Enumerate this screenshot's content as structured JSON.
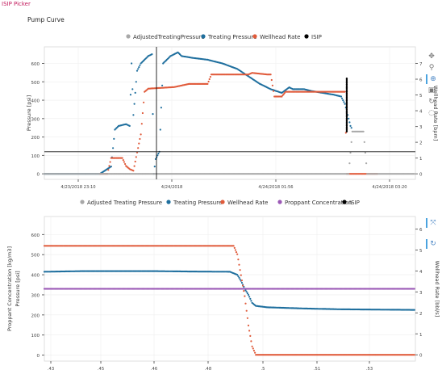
{
  "app": {
    "title": "ISIP Picker"
  },
  "page": {
    "title": "Pump Curve"
  },
  "colors": {
    "adjusted": "#a8a8a8",
    "treating": "#1f6f9e",
    "wellhead": "#e05a3a",
    "proppant": "#9b59b6",
    "isip": "#000000",
    "accent": "#4aa3df"
  },
  "chart_data": [
    {
      "type": "line",
      "legend": [
        {
          "name": "AdjustedTreatingPressure",
          "color": "#a8a8a8"
        },
        {
          "name": "Treating Pressure",
          "color": "#1f6f9e"
        },
        {
          "name": "Wellhead Rate",
          "color": "#e05a3a"
        },
        {
          "name": "ISIP",
          "color": "#000000"
        }
      ],
      "legend_position": "top",
      "ylabel": "Pressure [psi]",
      "ylabel2": "Wellhead Rate [bpm]",
      "y_ticks": [
        "0",
        "100",
        "200",
        "300",
        "400",
        "500",
        "600"
      ],
      "y2_ticks": [
        "0",
        "1",
        "2",
        "3",
        "4",
        "5",
        "6",
        "7"
      ],
      "x_ticks": [
        "4/23/2018 23:10",
        "4/24/2018",
        "4/24/2018 01:56",
        "4/24/2018 03:20"
      ],
      "ylim": [
        -30,
        690
      ],
      "y2lim": [
        -0.35,
        8.05
      ],
      "crosshair": {
        "x_label": "4/24/2018",
        "y": 120
      },
      "series": [
        {
          "name": "Treating Pressure",
          "color": "#1f6f9e",
          "values": [
            [
              0,
              0
            ],
            [
              15,
              0
            ],
            [
              18,
              40
            ],
            [
              19,
              240
            ],
            [
              20,
              260
            ],
            [
              22,
              270
            ],
            [
              23,
              260
            ],
            [
              23.5,
              600
            ],
            [
              24,
              320
            ],
            [
              25,
              560
            ],
            [
              26,
              600
            ],
            [
              27,
              620
            ],
            [
              28,
              640
            ],
            [
              29,
              650
            ],
            [
              29.5,
              0
            ],
            [
              30,
              80
            ],
            [
              31,
              120
            ],
            [
              32,
              600
            ],
            [
              33,
              620
            ],
            [
              34,
              640
            ],
            [
              35,
              650
            ],
            [
              36,
              660
            ],
            [
              37,
              640
            ],
            [
              40,
              630
            ],
            [
              44,
              620
            ],
            [
              48,
              600
            ],
            [
              52,
              570
            ],
            [
              55,
              530
            ],
            [
              58,
              490
            ],
            [
              61,
              460
            ],
            [
              64,
              440
            ],
            [
              66,
              470
            ],
            [
              67,
              460
            ],
            [
              70,
              460
            ],
            [
              72,
              450
            ],
            [
              75,
              440
            ],
            [
              78,
              430
            ],
            [
              80,
              420
            ],
            [
              81,
              380
            ],
            [
              82,
              300
            ],
            [
              82.5,
              260
            ],
            [
              83,
              240
            ]
          ]
        },
        {
          "name": "Wellhead Rate",
          "color": "#e05a3a",
          "values": [
            [
              15,
              0
            ],
            [
              17,
              0
            ],
            [
              18,
              1.0
            ],
            [
              21,
              1.0
            ],
            [
              22,
              0.5
            ],
            [
              23,
              0.3
            ],
            [
              24,
              0.2
            ],
            [
              26,
              2.5
            ],
            [
              27,
              5.2
            ],
            [
              28,
              5.4
            ],
            [
              35,
              5.5
            ],
            [
              39,
              5.7
            ],
            [
              44,
              5.7
            ],
            [
              45,
              6.3
            ],
            [
              55,
              6.3
            ],
            [
              56,
              6.4
            ],
            [
              60,
              6.3
            ],
            [
              61,
              6.3
            ],
            [
              62,
              4.9
            ],
            [
              64,
              4.9
            ],
            [
              65,
              5.2
            ],
            [
              73,
              5.2
            ],
            [
              80,
              5.2
            ],
            [
              81,
              5.2
            ],
            [
              81.5,
              0
            ],
            [
              90,
              0
            ]
          ]
        },
        {
          "name": "AdjustedTreatingPressure",
          "color": "#a8a8a8",
          "values": [
            [
              0,
              0
            ],
            [
              15,
              0
            ],
            [
              18,
              0
            ],
            [
              20,
              0
            ],
            [
              23,
              0
            ],
            [
              26,
              0
            ],
            [
              28,
              0
            ],
            [
              82,
              0
            ],
            [
              83,
              230
            ],
            [
              86,
              230
            ],
            [
              87,
              0
            ],
            [
              100,
              0
            ]
          ]
        }
      ],
      "isip": {
        "x": 81.5,
        "y_from": 520,
        "y_to": 230
      }
    },
    {
      "type": "line",
      "legend": [
        {
          "name": "Adjusted Treating Pressure",
          "color": "#a8a8a8"
        },
        {
          "name": "Treating Pressure",
          "color": "#1f6f9e"
        },
        {
          "name": "Wellhead Rate",
          "color": "#e05a3a"
        },
        {
          "name": "Proppant Concentration",
          "color": "#9b59b6"
        },
        {
          "name": "ISIP",
          "color": "#000000"
        }
      ],
      "legend_position": "top",
      "ylabel": "Proppant Concentration [kg/m3]",
      "ylabel_inner": "Pressure [psi]",
      "ylabel2": "Wellhead Rate [bbl/s]",
      "y_ticks": [
        "0",
        "100",
        "200",
        "300",
        "400",
        "500",
        "600"
      ],
      "y2_ticks": [
        "0",
        "1",
        "2",
        "3",
        "4",
        "5",
        "6"
      ],
      "x_ticks": [
        ".43",
        ".45",
        ".46",
        ".48",
        ".5",
        ".51",
        ".53"
      ],
      "ylim": [
        -30,
        690
      ],
      "y2lim": [
        -0.3,
        6.6
      ],
      "series": [
        {
          "name": "Treating Pressure",
          "color": "#1f6f9e",
          "values": [
            [
              0,
              415
            ],
            [
              10,
              418
            ],
            [
              20,
              418
            ],
            [
              30,
              418
            ],
            [
              40,
              416
            ],
            [
              50,
              415
            ],
            [
              52,
              400
            ],
            [
              53,
              370
            ],
            [
              54,
              330
            ],
            [
              55,
              300
            ],
            [
              56,
              260
            ],
            [
              57,
              245
            ],
            [
              60,
              238
            ],
            [
              70,
              232
            ],
            [
              80,
              228
            ],
            [
              100,
              225
            ]
          ]
        },
        {
          "name": "Wellhead Rate",
          "color": "#e05a3a",
          "values": [
            [
              0,
              5.2
            ],
            [
              40,
              5.2
            ],
            [
              51,
              5.2
            ],
            [
              52,
              4.8
            ],
            [
              53,
              3.8
            ],
            [
              54,
              2.8
            ],
            [
              55,
              1.4
            ],
            [
              56,
              0.4
            ],
            [
              57,
              0
            ],
            [
              100,
              0
            ]
          ]
        },
        {
          "name": "Proppant Concentration",
          "color": "#9b59b6",
          "values": [
            [
              0,
              330
            ],
            [
              100,
              330
            ]
          ]
        }
      ]
    }
  ]
}
